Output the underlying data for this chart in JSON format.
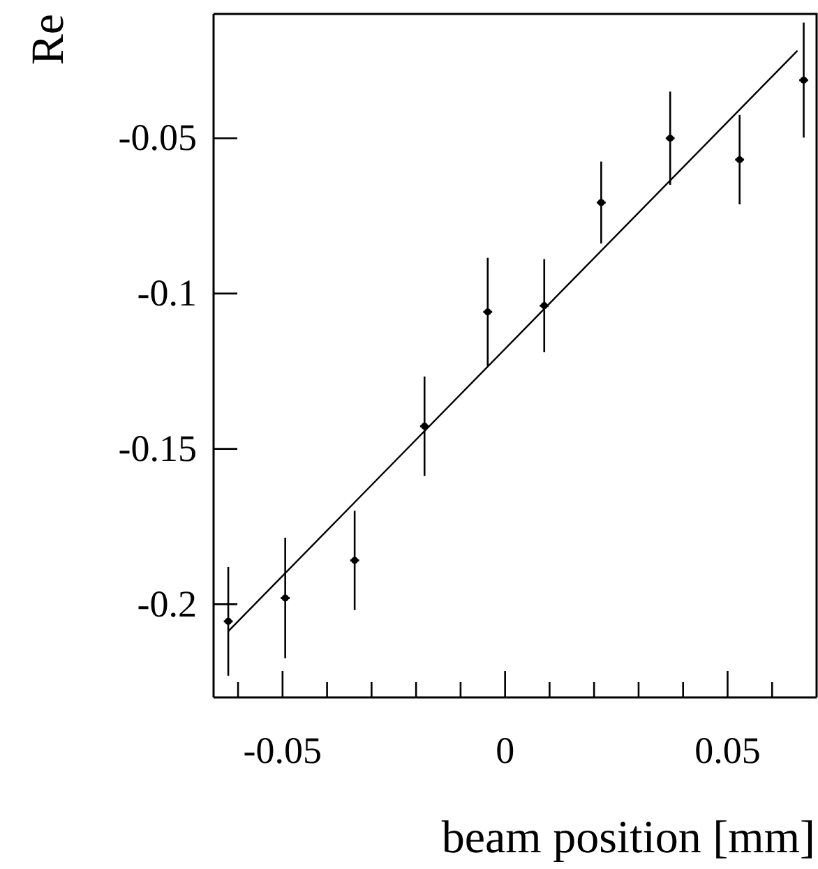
{
  "chart_data": {
    "type": "scatter",
    "xlabel": "beam position [mm]",
    "ylabel": "Re",
    "xlim": [
      -0.0655,
      0.07
    ],
    "ylim": [
      -0.23,
      -0.01
    ],
    "xticks": [
      {
        "value": -0.06,
        "label": null
      },
      -0.05,
      {
        "value": -0.04,
        "label": null
      },
      {
        "value": -0.03,
        "label": null
      },
      {
        "value": -0.02,
        "label": null
      },
      {
        "value": -0.01,
        "label": null
      },
      0,
      {
        "value": 0.01,
        "label": null
      },
      {
        "value": 0.02,
        "label": null
      },
      {
        "value": 0.03,
        "label": null
      },
      {
        "value": 0.04,
        "label": null
      },
      0.05,
      {
        "value": 0.06,
        "label": null
      }
    ],
    "yticks": [
      -0.2,
      -0.15,
      -0.1,
      -0.05
    ],
    "grid": false,
    "series": [
      {
        "type": "scatter",
        "marker": "circle",
        "color": "#000000",
        "x": [
          -0.0622,
          -0.0494,
          -0.0338,
          -0.0181,
          -0.0039,
          0.0088,
          0.0216,
          0.0371,
          0.0527,
          0.0671
        ],
        "values": [
          -0.2055,
          -0.198,
          -0.1859,
          -0.1427,
          -0.1059,
          -0.1039,
          -0.0707,
          -0.05,
          -0.0569,
          -0.0313
        ],
        "errors": [
          0.0175,
          0.0194,
          0.016,
          0.016,
          0.0174,
          0.015,
          0.0132,
          0.015,
          0.0144,
          0.0185
        ],
        "xerrors": [
          0.001,
          0.001,
          0.001,
          0.001,
          0.001,
          0.001,
          0.001,
          0.001,
          0.001,
          0.001
        ]
      },
      {
        "type": "line",
        "color": "#000000",
        "x": [
          -0.0622,
          0.0657
        ],
        "values": [
          -0.2087,
          -0.0218
        ]
      }
    ]
  }
}
